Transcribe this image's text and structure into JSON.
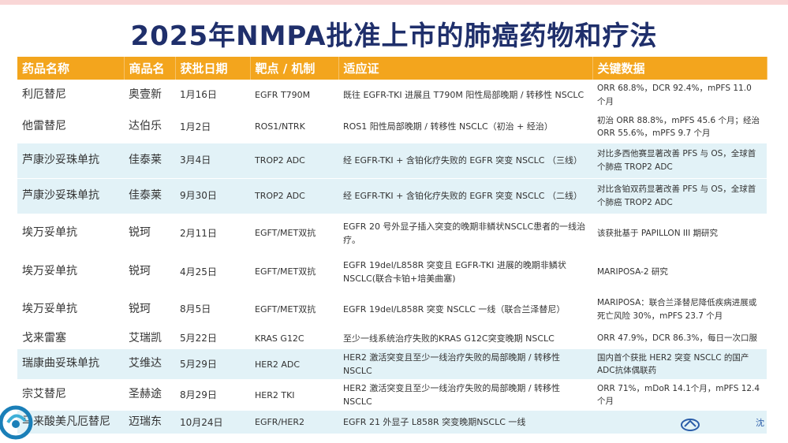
{
  "title": "2025年NMPA批准上市的肺癌药物和疗法",
  "table": {
    "headers": [
      "药品名称",
      "商品名",
      "获批日期",
      "靶点 / 机制",
      "适应证",
      "关键数据"
    ],
    "rows": [
      [
        "利厄替尼",
        "奥壹新",
        "1月16日",
        "EGFR T790M",
        "既往 EGFR-TKI 进展且 T790M 阳性局部晚期 / 转移性 NSCLC",
        "ORR 68.8%，DCR 92.4%，mPFS 11.0 个月"
      ],
      [
        "他雷替尼",
        "达伯乐",
        "1月2日",
        "ROS1/NTRK",
        "ROS1 阳性局部晚期 / 转移性 NSCLC（初治 + 经治）",
        "初治 ORR 88.8%，mPFS 45.6 个月；经治 ORR 55.6%，mPFS 9.7 个月"
      ],
      [
        "芦康沙妥珠单抗",
        "佳泰莱",
        "3月4日",
        "TROP2 ADC",
        "经 EGFR-TKI + 含铂化疗失败的 EGFR 突变 NSCLC （三线）",
        "对比多西他赛显著改善 PFS 与 OS，全球首个肺癌 TROP2 ADC"
      ],
      [
        "芦康沙妥珠单抗",
        "佳泰莱",
        "9月30日",
        "TROP2 ADC",
        "经 EGFR-TKI + 含铂化疗失败的 EGFR 突变 NSCLC （二线）",
        "对比含铂双药显著改善 PFS 与 OS，全球首个肺癌 TROP2 ADC"
      ],
      [
        "埃万妥单抗",
        "锐珂",
        "2月11日",
        "EGFT/MET双抗",
        "EGFR 20 号外显子插入突变的晚期非鳞状NSCLC患者的一线治疗。",
        "该获批基于 PAPILLON III 期研究"
      ],
      [
        "埃万妥单抗",
        "锐珂",
        "4月25日",
        "EGFT/MET双抗",
        "EGFR 19del/L858R 突变且 EGFR-TKI 进展的晚期非鳞状 NSCLC(联合卡铂+培美曲塞)",
        "MARIPOSA-2 研究"
      ],
      [
        "埃万妥单抗",
        "锐珂",
        "8月5日",
        "EGFT/MET双抗",
        "EGFR 19del/L858R 突变 NSCLC 一线（联合兰泽替尼）",
        "MARIPOSA：联合兰泽替尼降低疾病进展或死亡风险 30%，mPFS 23.7 个月"
      ],
      [
        "戈来雷塞",
        "艾瑞凯",
        "5月22日",
        "KRAS G12C",
        "至少一线系统治疗失败的KRAS G12C突变晚期 NSCLC",
        "ORR 47.9%，DCR 86.3%，每日一次口服"
      ],
      [
        "瑞康曲妥珠单抗",
        "艾维达",
        "5月29日",
        "HER2 ADC",
        "HER2 激活突变且至少一线治疗失败的局部晚期 / 转移性 NSCLC",
        "国内首个获批 HER2 突变 NSCLC 的国产ADC抗体偶联药"
      ],
      [
        "宗艾替尼",
        "圣赫途",
        "8月29日",
        "HER2 TKI",
        "HER2 激活突变且至少一线治疗失败的局部晚期 / 转移性 NSCLC",
        "ORR 71%，mDoR 14.1个月，mPFS 12.4个月"
      ],
      [
        "马来酸美凡厄替尼",
        "迈瑞东",
        "10月24日",
        "EGFR/HER2",
        "EGFR 21 外显子 L858R 突变晚期NSCLC 一线",
        ""
      ]
    ]
  },
  "footer": {
    "mark": "沈"
  },
  "colors": {
    "header_bg": "#f3a51d",
    "row_tint": "#e2f2f7",
    "title": "#1f2f6b"
  }
}
